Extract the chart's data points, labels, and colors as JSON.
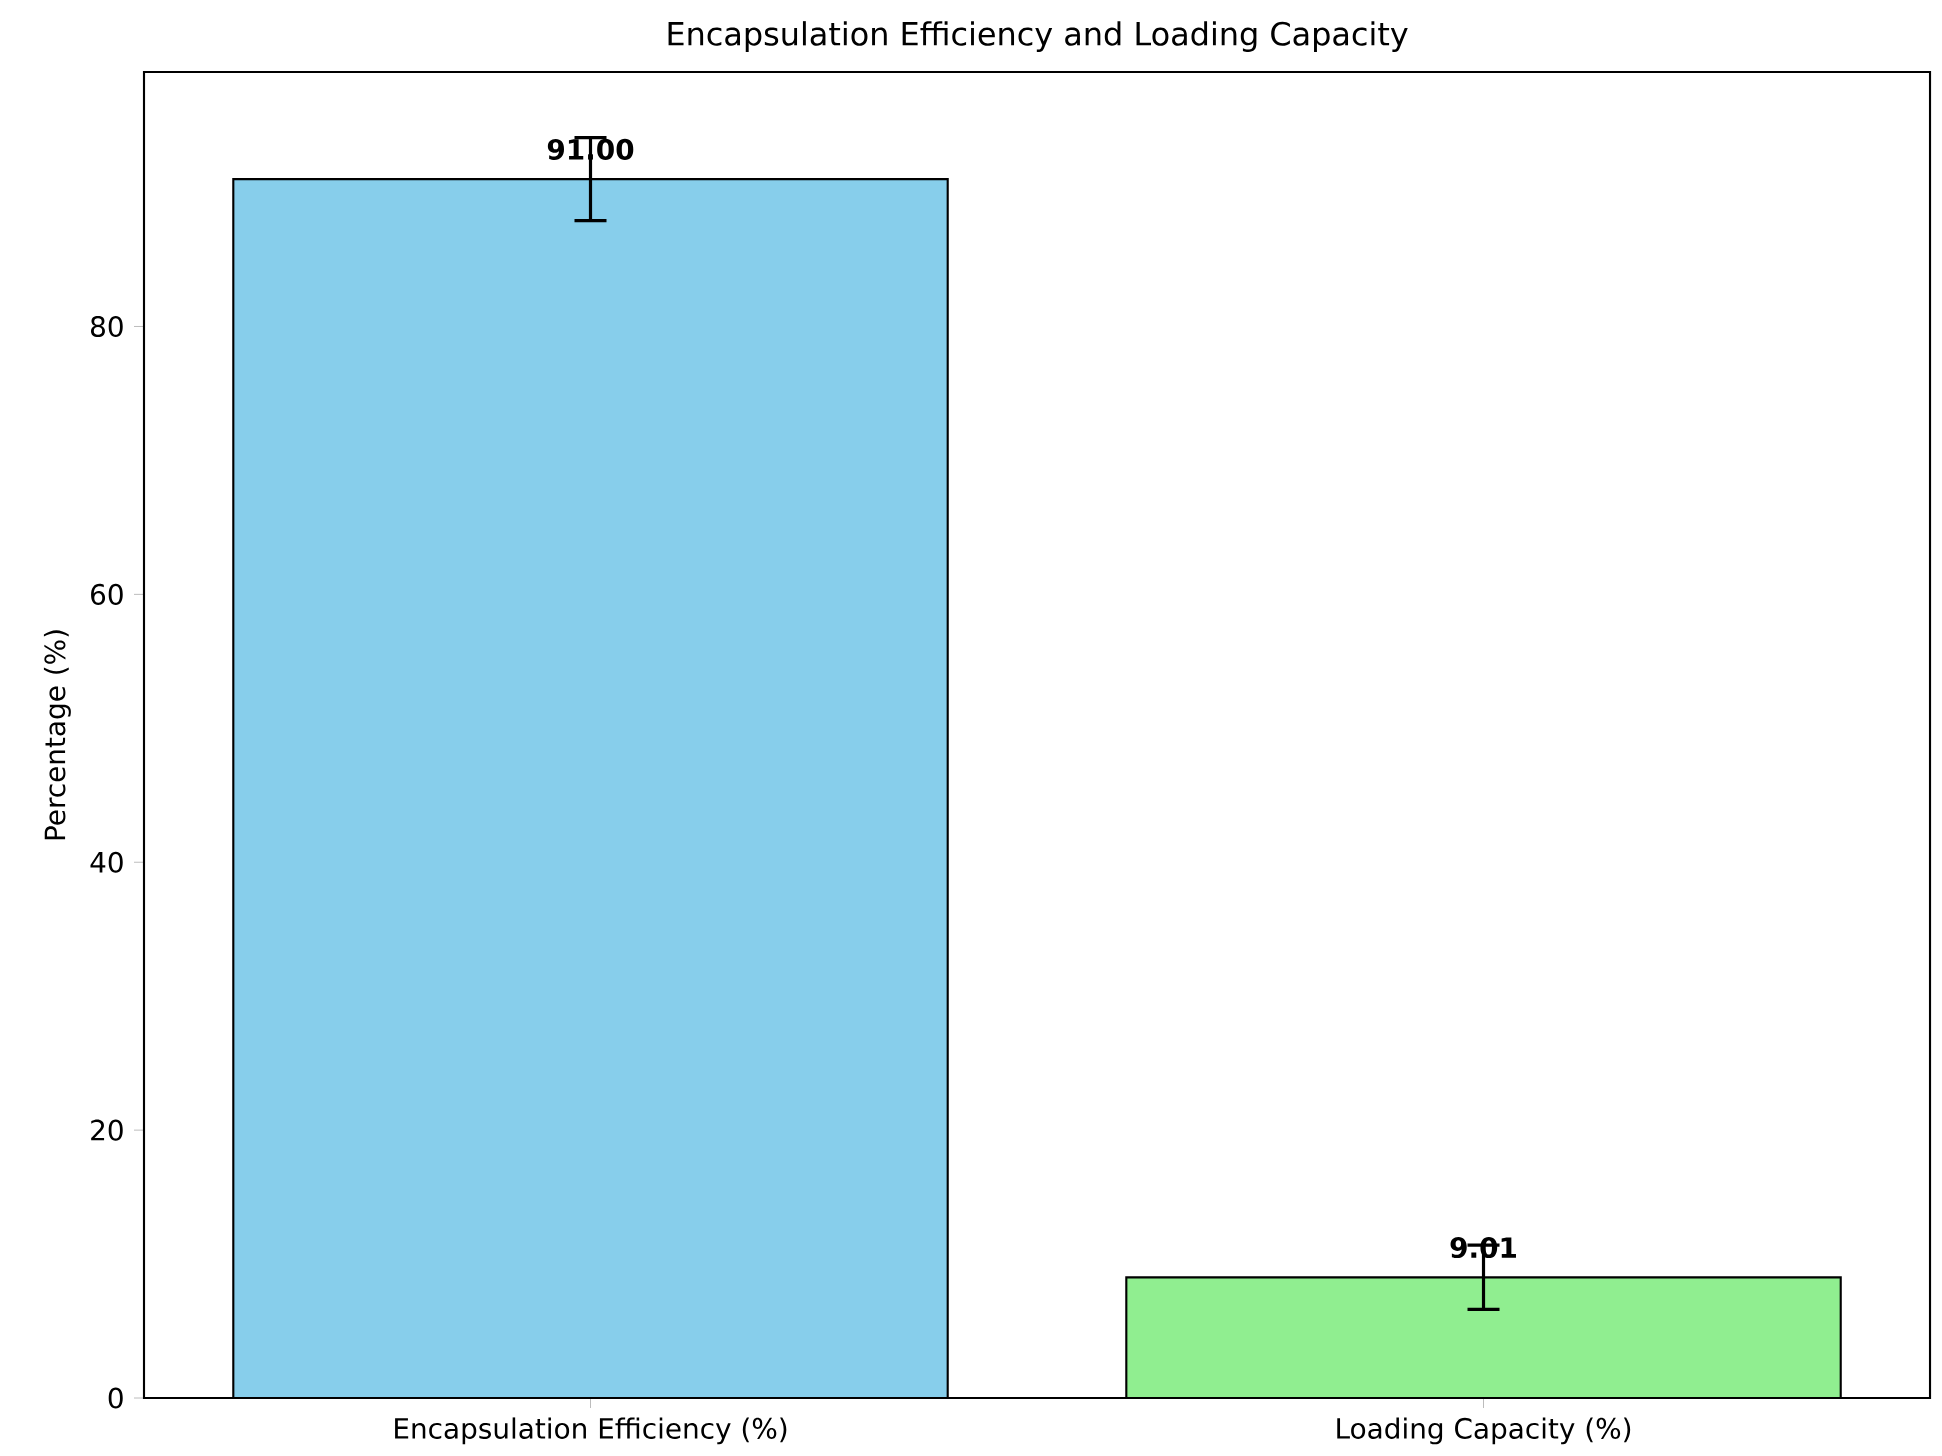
{
  "chart_data": {
    "type": "bar",
    "title": "Encapsulation Efficiency and Loading Capacity",
    "ylabel": "Percentage (%)",
    "categories": [
      "Encapsulation Efficiency (%)",
      "Loading Capacity (%)"
    ],
    "values": [
      91.0,
      9.01
    ],
    "colors": [
      "#87ceeb",
      "#90ee90"
    ],
    "errors": [
      3.1,
      2.4
    ],
    "value_labels": [
      "91.00",
      "9.01"
    ],
    "ylim": [
      0,
      99
    ],
    "yticks": [
      0,
      20,
      40,
      60,
      80
    ]
  }
}
